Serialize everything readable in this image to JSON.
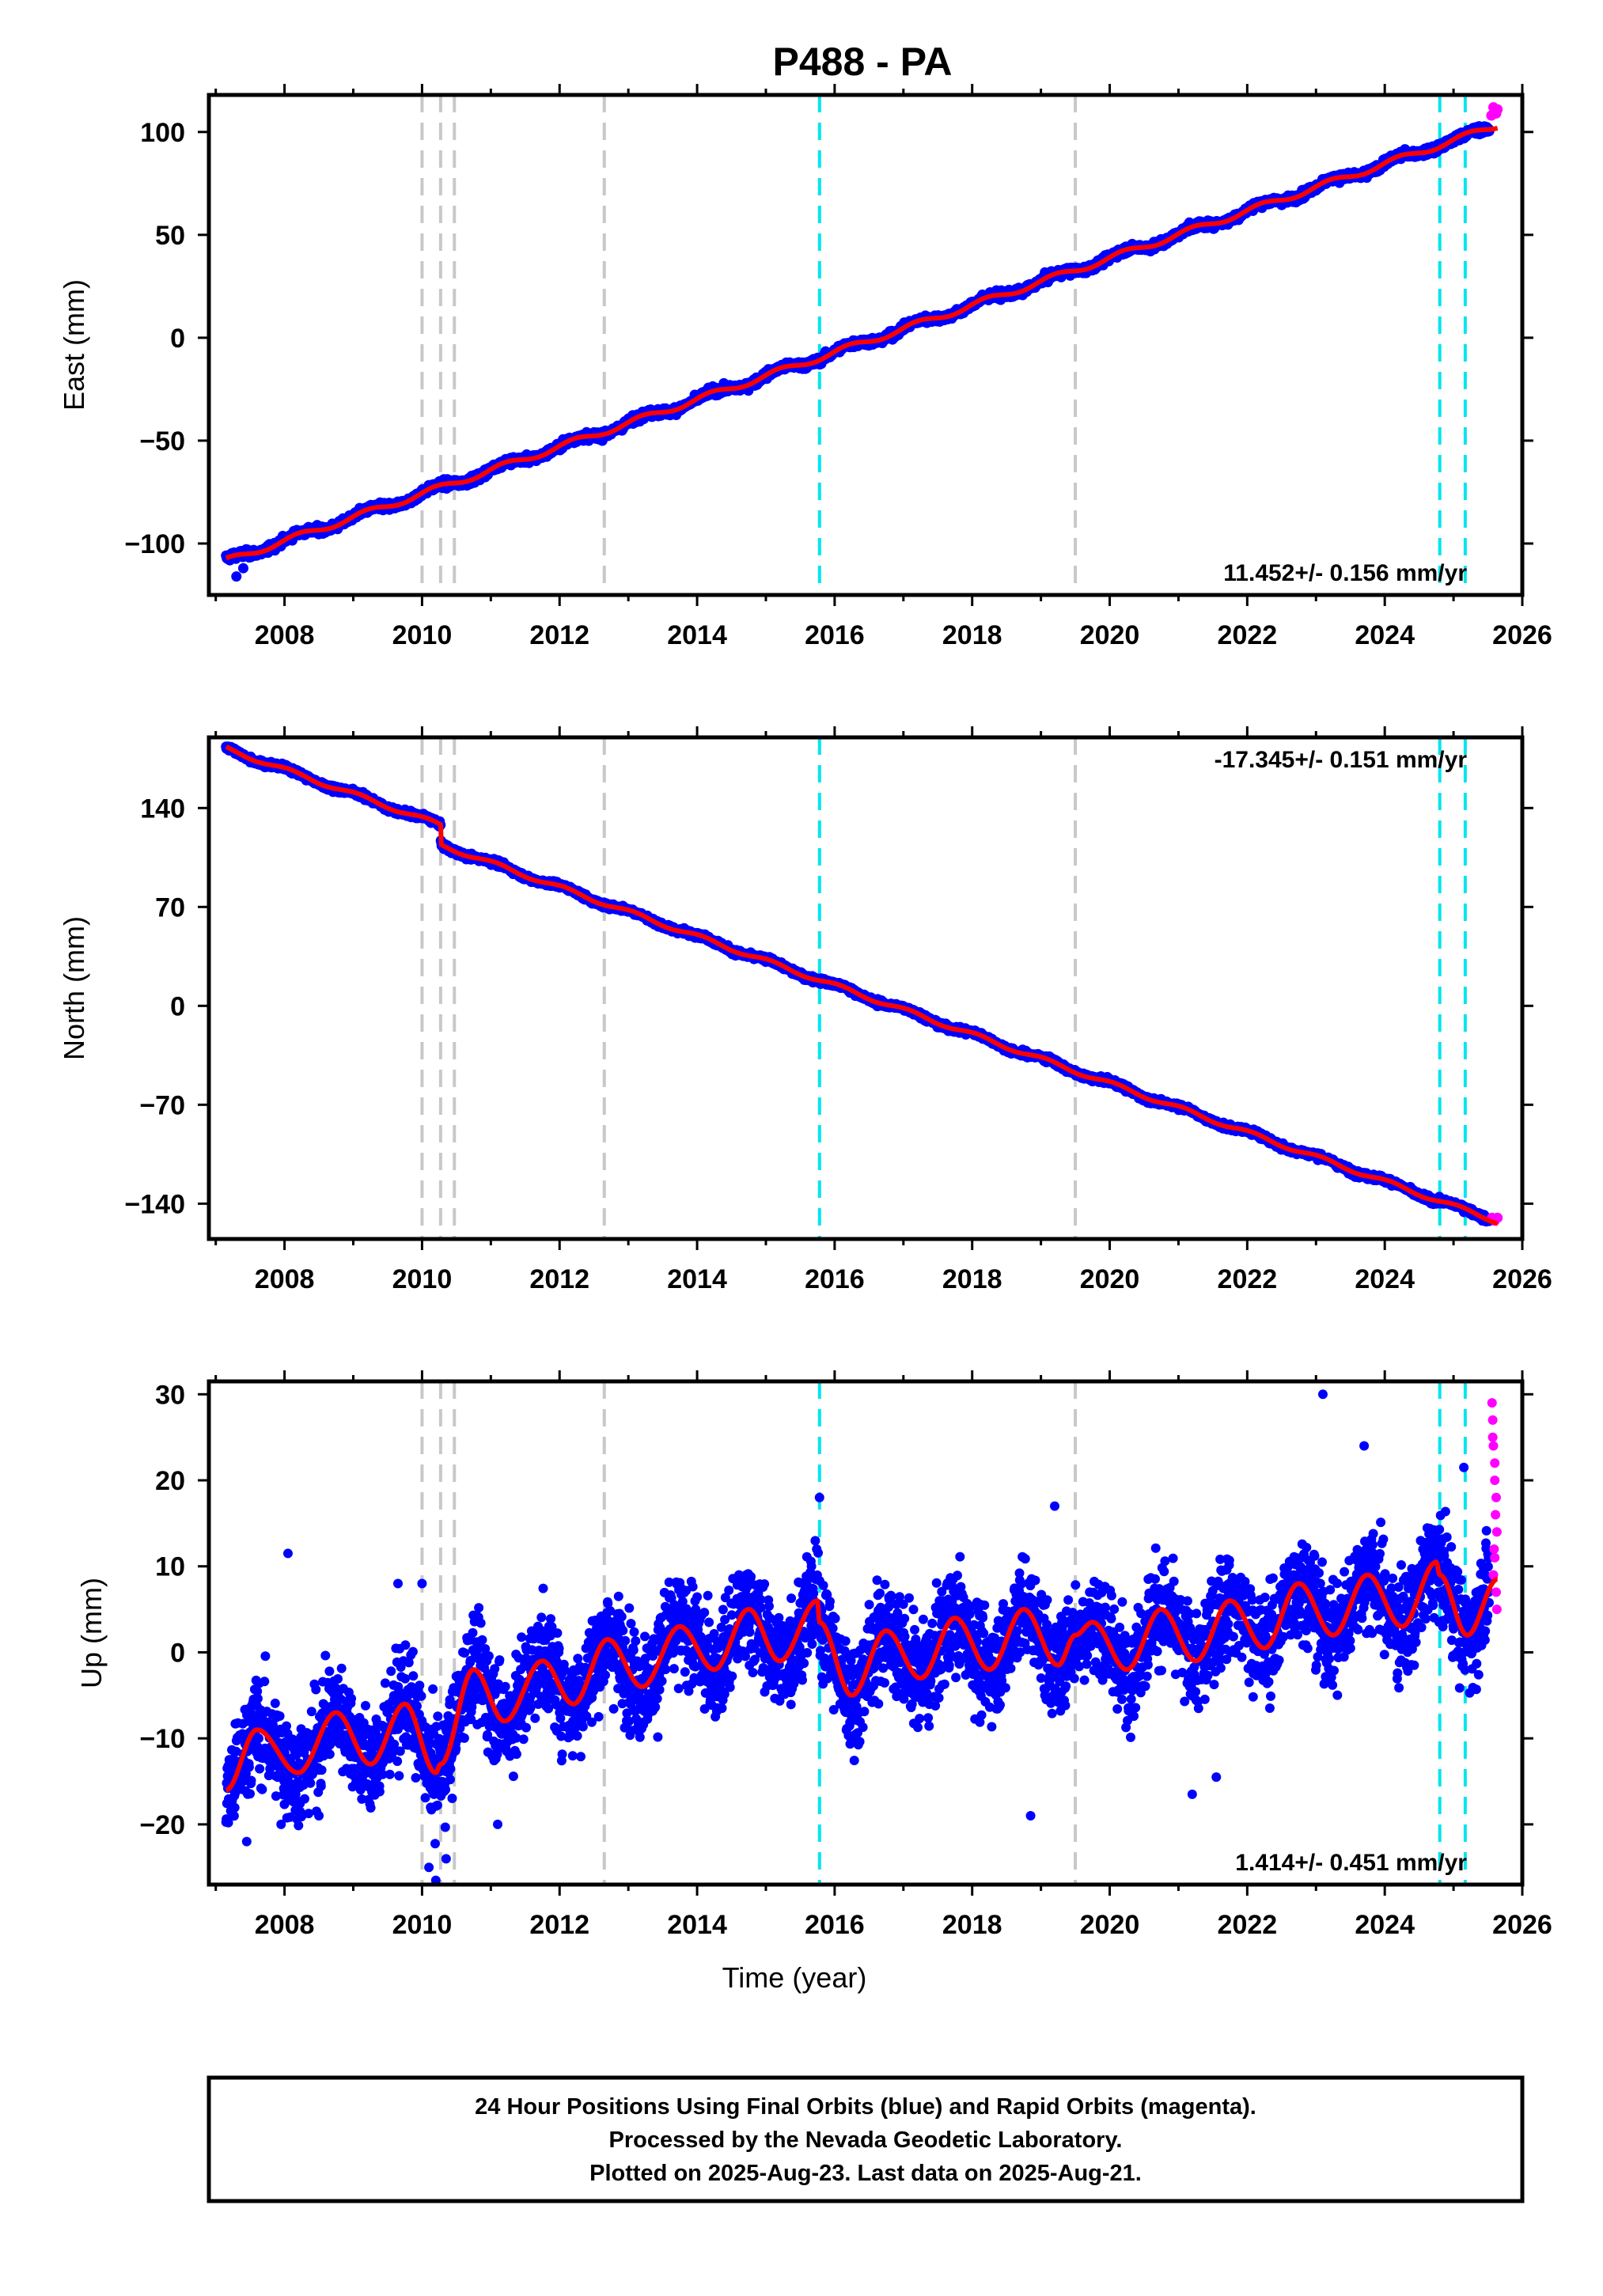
{
  "title": "P488 - PA",
  "footer": {
    "line1": "24 Hour Positions Using Final Orbits (blue) and Rapid Orbits (magenta).",
    "line2": "Processed by the Nevada Geodetic Laboratory.",
    "line3": "Plotted on 2025-Aug-23. Last data on 2025-Aug-21."
  },
  "colors": {
    "final": "#0000ff",
    "rapid": "#ff00ff",
    "model": "#ff0000",
    "equipment_change": "#c8c8c8",
    "other_event": "#00e5ee"
  },
  "chart_data": [
    {
      "type": "scatter",
      "name": "east",
      "ylabel": "East (mm)",
      "xlabel": "",
      "xlim": [
        2006.9,
        2026.0
      ],
      "ylim": [
        -125,
        118
      ],
      "xticks": [
        "2008",
        "2010",
        "2012",
        "2014",
        "2016",
        "2018",
        "2020",
        "2022",
        "2024",
        "2026"
      ],
      "yticks": [
        "100",
        "50",
        "0",
        "−50",
        "−100"
      ],
      "ytick_values": [
        100,
        50,
        0,
        -50,
        -100
      ],
      "rate_text": "11.452+/- 0.156 mm/yr",
      "rate_position": "bottom-right",
      "trend": {
        "start": 2007.15,
        "end": 2025.64,
        "y0": -108.5,
        "rate": 11.452
      },
      "seasonal": {
        "amp": 1.5,
        "phase": 0.3
      },
      "offsets": [],
      "scatter": 1.3,
      "rapid_range": [
        2025.52,
        2025.64
      ],
      "rapid_points": [
        [
          2025.55,
          108
        ],
        [
          2025.58,
          112
        ],
        [
          2025.62,
          109
        ],
        [
          2025.64,
          111
        ]
      ],
      "outliers": [
        [
          2007.3,
          -116
        ],
        [
          2007.4,
          -112
        ]
      ],
      "gray_events": [
        2010.0,
        2010.27,
        2010.47,
        2012.65,
        2019.5
      ],
      "cyan_events": [
        2015.78,
        2024.8,
        2025.17
      ]
    },
    {
      "type": "scatter",
      "name": "north",
      "ylabel": "North (mm)",
      "xlabel": "",
      "xlim": [
        2006.9,
        2026.0
      ],
      "ylim": [
        -165,
        190
      ],
      "xticks": [
        "2008",
        "2010",
        "2012",
        "2014",
        "2016",
        "2018",
        "2020",
        "2022",
        "2024",
        "2026"
      ],
      "yticks": [
        "140",
        "70",
        "0",
        "−70",
        "−140"
      ],
      "ytick_values": [
        140,
        70,
        0,
        -70,
        -140
      ],
      "rate_text": "-17.345+/- 0.151 mm/yr",
      "rate_position": "top-right",
      "trend": {
        "start": 2007.15,
        "end": 2025.64,
        "y0": 182,
        "rate": -17.345
      },
      "seasonal": {
        "amp": 1.5,
        "phase": 1.1
      },
      "offsets": [
        {
          "t": 2010.27,
          "dy": -14
        }
      ],
      "scatter": 1.4,
      "rapid_range": [
        2025.52,
        2025.64
      ],
      "rapid_points": [
        [
          2025.56,
          -150
        ],
        [
          2025.6,
          -152
        ],
        [
          2025.64,
          -150
        ]
      ],
      "outliers": [],
      "gray_events": [
        2010.0,
        2010.27,
        2010.47,
        2012.65,
        2019.5
      ],
      "cyan_events": [
        2015.78,
        2024.8,
        2025.17
      ]
    },
    {
      "type": "scatter",
      "name": "up",
      "ylabel": "Up (mm)",
      "xlabel": "Time (year)",
      "xlim": [
        2006.9,
        2026.0
      ],
      "ylim": [
        -27,
        31.5
      ],
      "xticks": [
        "2008",
        "2010",
        "2012",
        "2014",
        "2016",
        "2018",
        "2020",
        "2022",
        "2024",
        "2026"
      ],
      "yticks": [
        "30",
        "20",
        "10",
        "0",
        "−10",
        "−20"
      ],
      "ytick_values": [
        30,
        20,
        10,
        0,
        -10,
        -20
      ],
      "rate_text": "1.414+/- 0.451 mm/yr",
      "rate_position": "bottom-right",
      "model_curve": [
        [
          2007.15,
          -16
        ],
        [
          2007.6,
          -9
        ],
        [
          2008.2,
          -14
        ],
        [
          2008.75,
          -7
        ],
        [
          2009.25,
          -13
        ],
        [
          2009.75,
          -6
        ],
        [
          2010.2,
          -14
        ],
        [
          2010.27,
          -13
        ],
        [
          2010.75,
          -2
        ],
        [
          2011.2,
          -8
        ],
        [
          2011.75,
          -1
        ],
        [
          2012.2,
          -6
        ],
        [
          2012.7,
          1.5
        ],
        [
          2013.2,
          -4
        ],
        [
          2013.75,
          3
        ],
        [
          2014.25,
          -2
        ],
        [
          2014.75,
          5
        ],
        [
          2015.2,
          -1
        ],
        [
          2015.75,
          6
        ],
        [
          2015.78,
          3.5
        ],
        [
          2016.25,
          -5
        ],
        [
          2016.75,
          2.5
        ],
        [
          2017.25,
          -3
        ],
        [
          2017.75,
          4
        ],
        [
          2018.25,
          -2
        ],
        [
          2018.75,
          5
        ],
        [
          2019.25,
          -1.5
        ],
        [
          2019.5,
          2
        ],
        [
          2019.75,
          3.5
        ],
        [
          2020.25,
          -2
        ],
        [
          2020.75,
          5
        ],
        [
          2021.25,
          -1
        ],
        [
          2021.75,
          6
        ],
        [
          2022.25,
          0.5
        ],
        [
          2022.75,
          8
        ],
        [
          2023.25,
          2
        ],
        [
          2023.75,
          9
        ],
        [
          2024.25,
          3
        ],
        [
          2024.75,
          10.5
        ],
        [
          2024.8,
          9
        ],
        [
          2025.2,
          2
        ],
        [
          2025.64,
          8.5
        ]
      ],
      "scatter": 4.2,
      "rapid_range": [
        2025.52,
        2025.64
      ],
      "rapid_points": [
        [
          2025.56,
          29
        ],
        [
          2025.57,
          27
        ],
        [
          2025.58,
          24
        ],
        [
          2025.6,
          22
        ],
        [
          2025.6,
          20
        ],
        [
          2025.62,
          18
        ],
        [
          2025.63,
          14
        ],
        [
          2025.6,
          11
        ],
        [
          2025.58,
          9
        ],
        [
          2025.62,
          7
        ],
        [
          2025.57,
          25
        ],
        [
          2025.61,
          16
        ],
        [
          2025.63,
          5
        ],
        [
          2025.59,
          12
        ]
      ],
      "outliers": [
        [
          2023.1,
          30
        ],
        [
          2023.7,
          24
        ],
        [
          2025.15,
          21.5
        ],
        [
          2019.2,
          17
        ],
        [
          2015.78,
          18
        ],
        [
          2008.05,
          11.5
        ],
        [
          2009.65,
          8
        ],
        [
          2010.0,
          8
        ],
        [
          2010.1,
          -25
        ],
        [
          2010.2,
          -26.5
        ],
        [
          2010.35,
          -24
        ],
        [
          2021.2,
          -16.5
        ],
        [
          2021.55,
          -14.5
        ],
        [
          2018.85,
          -19
        ],
        [
          2007.45,
          -22
        ],
        [
          2007.95,
          -20
        ],
        [
          2008.5,
          -19
        ],
        [
          2011.1,
          -20
        ]
      ],
      "gray_events": [
        2010.0,
        2010.27,
        2010.47,
        2012.65,
        2019.5
      ],
      "cyan_events": [
        2015.78,
        2024.8,
        2025.17
      ]
    }
  ]
}
